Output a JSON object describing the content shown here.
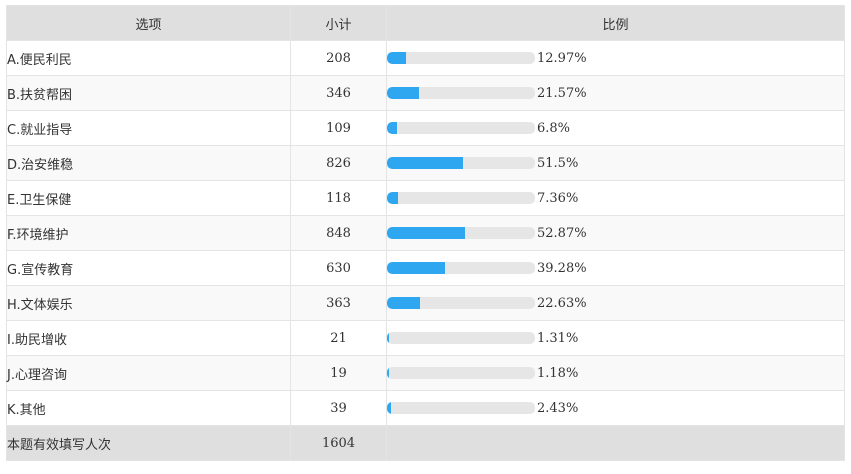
{
  "header": {
    "option": "选项",
    "count": "小计",
    "ratio": "比例"
  },
  "rows": [
    {
      "label": "A.便民利民",
      "count": "208",
      "pct_text": "12.97%",
      "pct": 12.97
    },
    {
      "label": "B.扶贫帮困",
      "count": "346",
      "pct_text": "21.57%",
      "pct": 21.57
    },
    {
      "label": "C.就业指导",
      "count": "109",
      "pct_text": "6.8%",
      "pct": 6.8
    },
    {
      "label": "D.治安维稳",
      "count": "826",
      "pct_text": "51.5%",
      "pct": 51.5
    },
    {
      "label": "E.卫生保健",
      "count": "118",
      "pct_text": "7.36%",
      "pct": 7.36
    },
    {
      "label": "F.环境维护",
      "count": "848",
      "pct_text": "52.87%",
      "pct": 52.87
    },
    {
      "label": "G.宣传教育",
      "count": "630",
      "pct_text": "39.28%",
      "pct": 39.28
    },
    {
      "label": "H.文体娱乐",
      "count": "363",
      "pct_text": "22.63%",
      "pct": 22.63
    },
    {
      "label": "I.助民增收",
      "count": "21",
      "pct_text": "1.31%",
      "pct": 1.31
    },
    {
      "label": "J.心理咨询",
      "count": "19",
      "pct_text": "1.18%",
      "pct": 1.18
    },
    {
      "label": "K.其他",
      "count": "39",
      "pct_text": "2.43%",
      "pct": 2.43
    }
  ],
  "footer": {
    "label": "本题有效填写人次",
    "count": "1604"
  },
  "colors": {
    "bar_fill": "#2ea7f0",
    "bar_track": "#e6e6e6",
    "header_bg": "#dfdfdf"
  }
}
